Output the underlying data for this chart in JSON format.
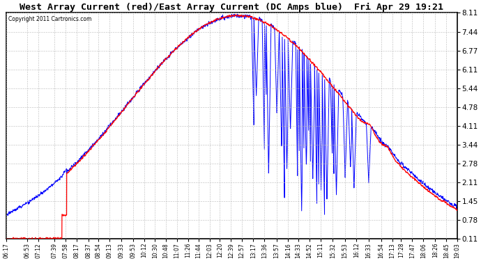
{
  "title": "West Array Current (red)/East Array Current (DC Amps blue)  Fri Apr 29 19:21",
  "copyright": "Copyright 2011 Cartronics.com",
  "yticks": [
    0.11,
    0.78,
    1.45,
    2.11,
    2.78,
    3.44,
    4.11,
    4.78,
    5.44,
    6.11,
    6.77,
    7.44,
    8.11
  ],
  "ymin": 0.11,
  "ymax": 8.11,
  "background_color": "#ffffff",
  "grid_color": "#bbbbbb",
  "red_color": "#ff0000",
  "blue_color": "#0000ff",
  "xtick_labels": [
    "06:17",
    "06:53",
    "07:12",
    "07:39",
    "07:58",
    "08:17",
    "08:37",
    "08:54",
    "09:13",
    "09:33",
    "09:53",
    "10:12",
    "10:30",
    "10:48",
    "11:07",
    "11:26",
    "11:44",
    "12:03",
    "12:20",
    "12:39",
    "12:57",
    "13:17",
    "13:36",
    "13:57",
    "14:16",
    "14:33",
    "14:52",
    "15:11",
    "15:32",
    "15:53",
    "16:12",
    "16:33",
    "16:54",
    "17:13",
    "17:28",
    "17:47",
    "18:06",
    "18:26",
    "18:45",
    "19:03"
  ]
}
